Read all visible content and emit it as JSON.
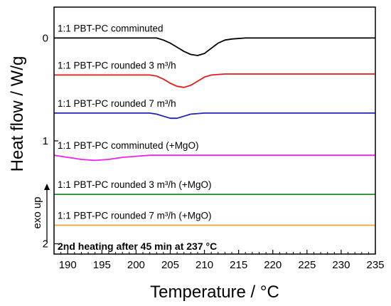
{
  "chart_data": {
    "type": "line",
    "xlabel": "Temperature / °C",
    "ylabel": "Heat flow / W/g",
    "xlim": [
      188,
      235
    ],
    "ylim": [
      -0.3,
      2.1
    ],
    "y_inverted": true,
    "x_ticks": [
      190,
      195,
      200,
      205,
      210,
      215,
      220,
      225,
      230,
      235
    ],
    "y_ticks": [
      0,
      1,
      2
    ],
    "annotation": "2nd heating after 45 min at 237 °C",
    "exo_label": "exo up",
    "series": [
      {
        "name": "1:1 PBT-PC comminuted",
        "color": "#000000",
        "points": [
          [
            188,
            0.0
          ],
          [
            203,
            0.0
          ],
          [
            204,
            0.02
          ],
          [
            205,
            0.05
          ],
          [
            206,
            0.09
          ],
          [
            207,
            0.13
          ],
          [
            208,
            0.16
          ],
          [
            209,
            0.17
          ],
          [
            210,
            0.15
          ],
          [
            211,
            0.1
          ],
          [
            212,
            0.05
          ],
          [
            213,
            0.02
          ],
          [
            214,
            0.01
          ],
          [
            216,
            0.0
          ],
          [
            235,
            0.0
          ]
        ]
      },
      {
        "name": "1:1 PBT-PC rounded 3 m³/h",
        "color": "#e8191b",
        "points": [
          [
            188,
            0.36
          ],
          [
            202,
            0.36
          ],
          [
            203,
            0.37
          ],
          [
            204,
            0.4
          ],
          [
            205,
            0.44
          ],
          [
            206,
            0.47
          ],
          [
            207,
            0.48
          ],
          [
            208,
            0.46
          ],
          [
            209,
            0.42
          ],
          [
            210,
            0.38
          ],
          [
            211,
            0.36
          ],
          [
            213,
            0.35
          ],
          [
            235,
            0.35
          ]
        ]
      },
      {
        "name": "1:1 PBT-PC rounded 7 m³/h",
        "color": "#2222bb",
        "points": [
          [
            188,
            0.73
          ],
          [
            202,
            0.73
          ],
          [
            203,
            0.74
          ],
          [
            204,
            0.76
          ],
          [
            205,
            0.78
          ],
          [
            206,
            0.78
          ],
          [
            207,
            0.76
          ],
          [
            208,
            0.74
          ],
          [
            210,
            0.73
          ],
          [
            235,
            0.73
          ]
        ]
      },
      {
        "name": "1:1 PBT-PC comminuted (+MgO)",
        "color": "#ee22ee",
        "points": [
          [
            188,
            1.14
          ],
          [
            190,
            1.16
          ],
          [
            192,
            1.18
          ],
          [
            194,
            1.19
          ],
          [
            196,
            1.18
          ],
          [
            198,
            1.16
          ],
          [
            200,
            1.15
          ],
          [
            202,
            1.14
          ],
          [
            235,
            1.14
          ]
        ]
      },
      {
        "name": "1:1 PBT-PC rounded 3 m³/h (+MgO)",
        "color": "#228b22",
        "points": [
          [
            188,
            1.52
          ],
          [
            235,
            1.52
          ]
        ]
      },
      {
        "name": "1:1 PBT-PC rounded 7 m³/h (+MgO)",
        "color": "#f0a030",
        "points": [
          [
            188,
            1.82
          ],
          [
            235,
            1.82
          ]
        ]
      }
    ]
  }
}
